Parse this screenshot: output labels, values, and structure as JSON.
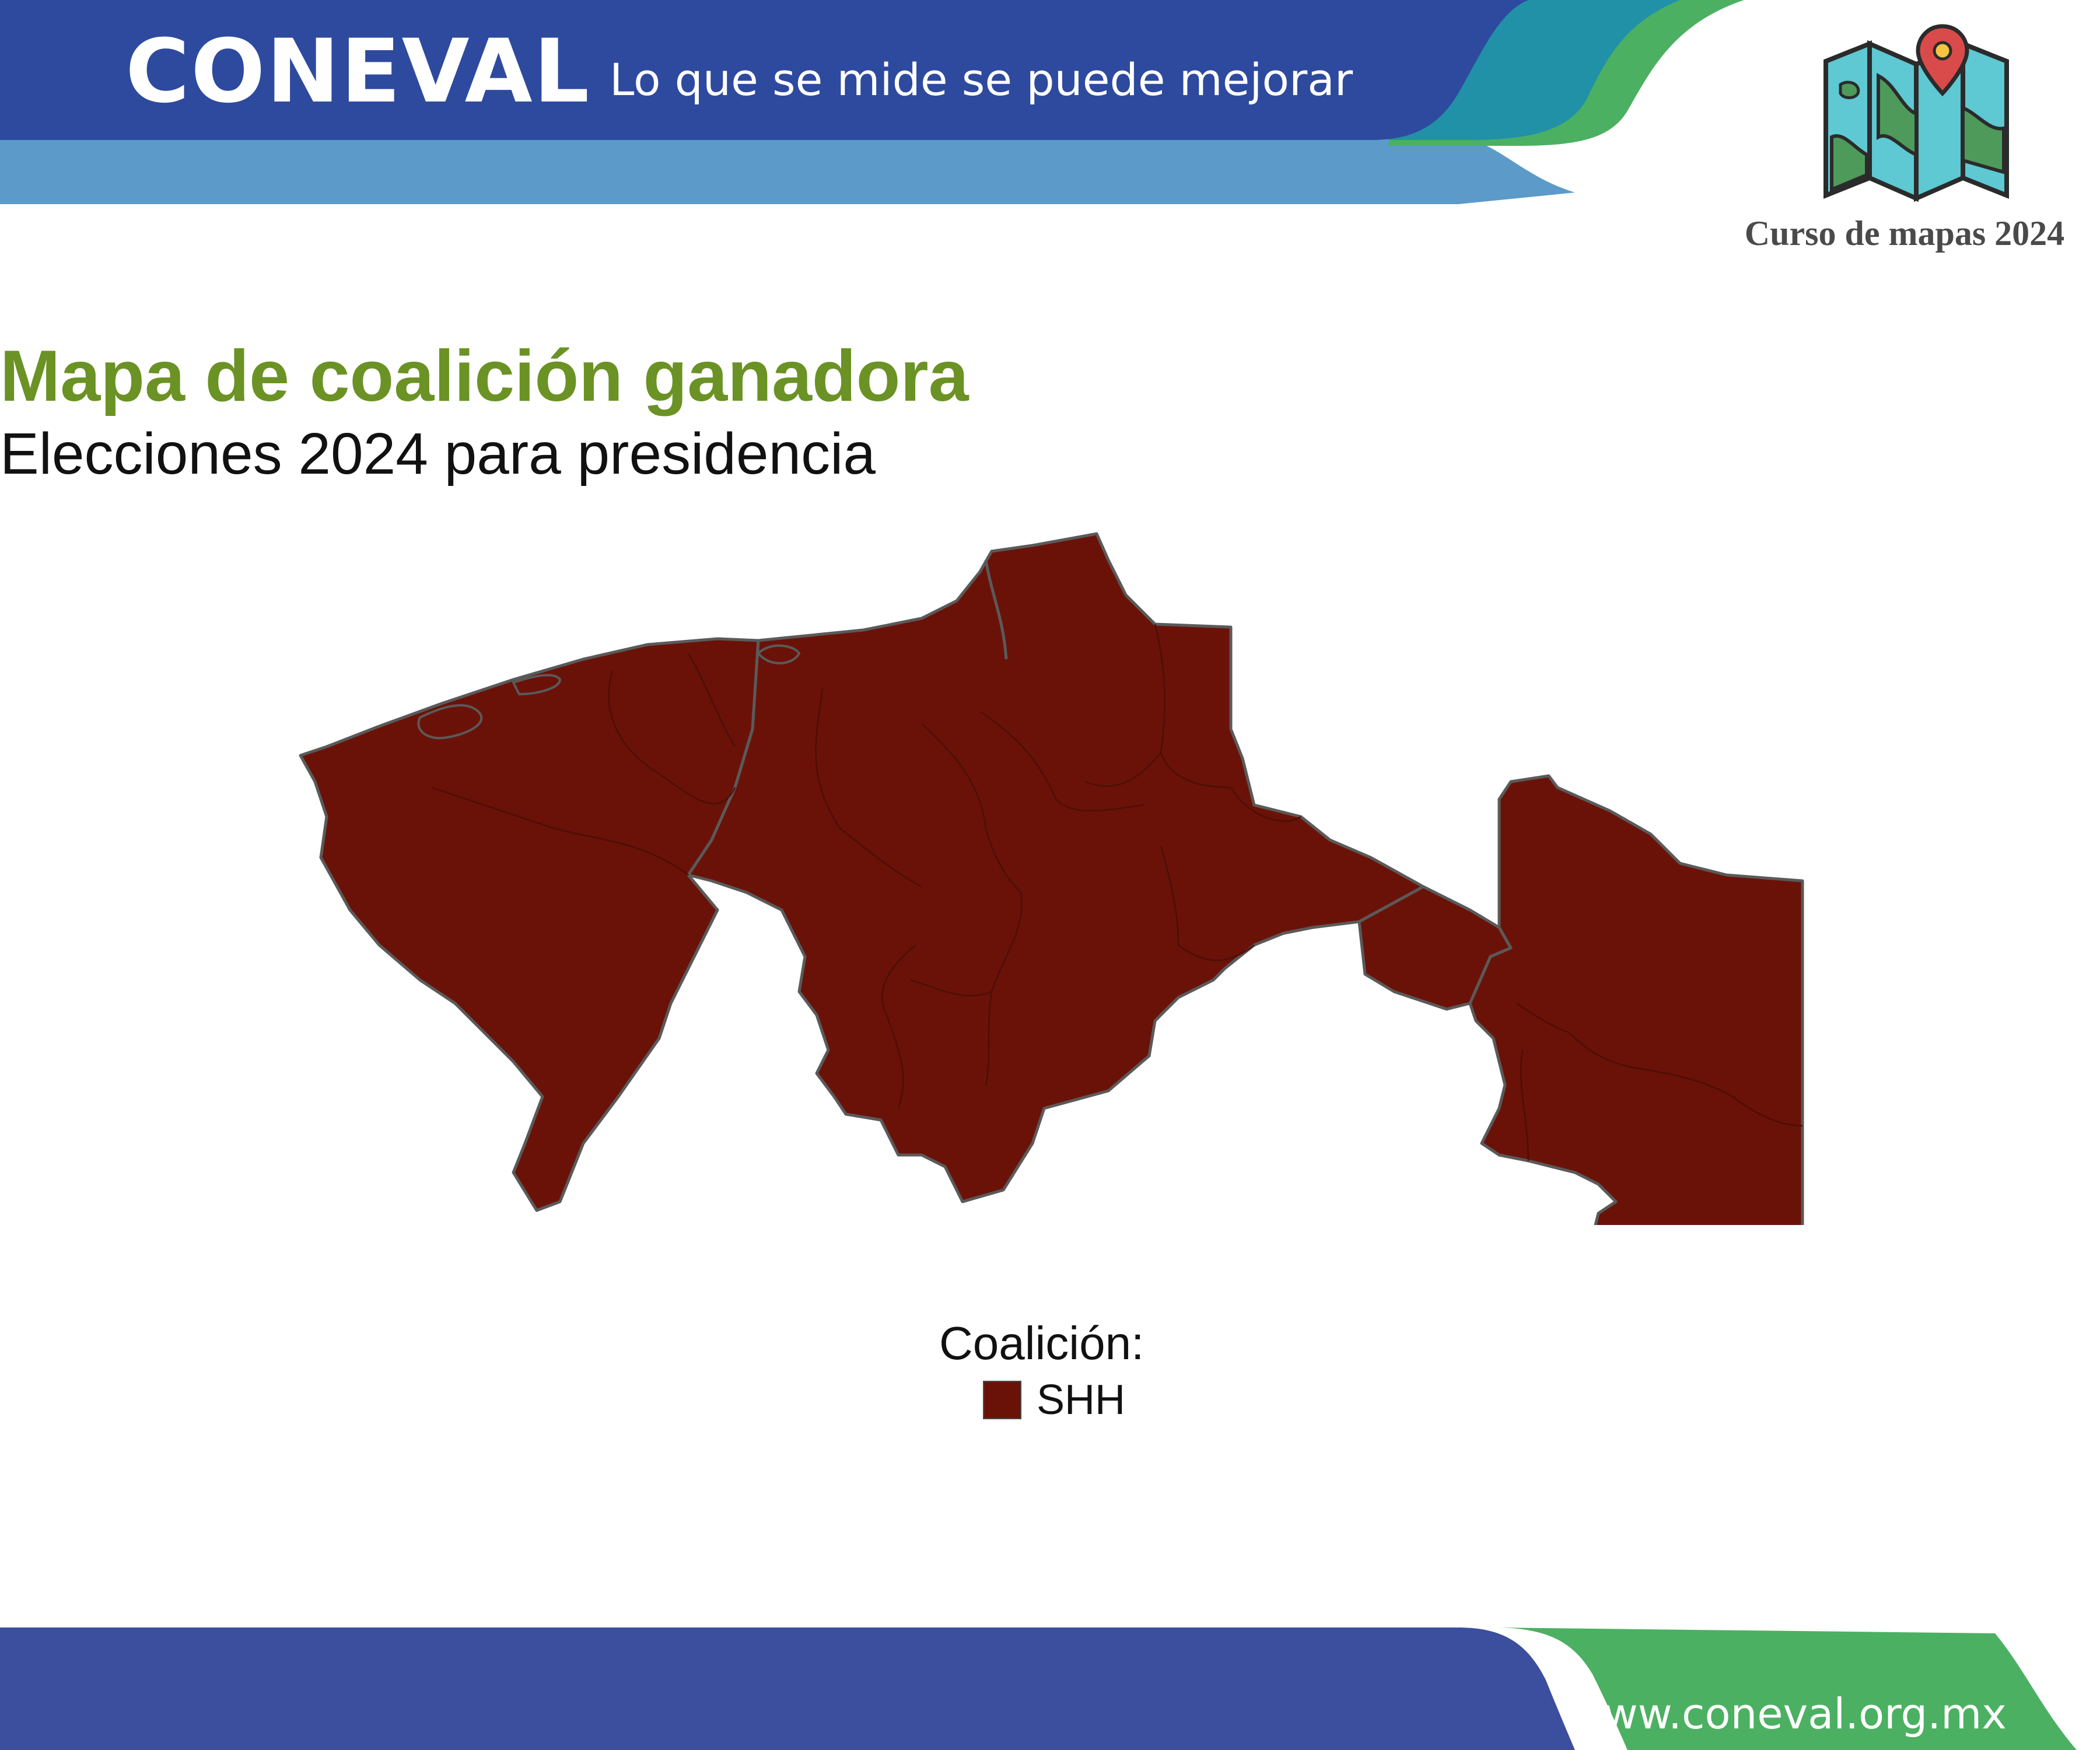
{
  "header": {
    "logo_text": "CONEVAL",
    "slogan": "Lo que se mide se puede mejorar",
    "colors": {
      "primary_blue": "#2e4a9e",
      "light_blue": "#5b9ac9",
      "teal": "#2191a8",
      "green": "#4cb062"
    }
  },
  "course": {
    "icon": "folded-map-with-pin-icon",
    "label": "Curso de mapas 2024"
  },
  "titles": {
    "main": "Mapa de coalición ganadora",
    "subtitle": "Elecciones 2024 para presidencia",
    "main_color": "#6b9224"
  },
  "map": {
    "region_fill": "#6b1208",
    "border_color": "#555555",
    "winner_all_municipalities": "SHH"
  },
  "legend": {
    "title": "Coalición:",
    "items": [
      {
        "label": "SHH",
        "color": "#6b1208"
      }
    ]
  },
  "footer": {
    "url": "www.coneval.org.mx",
    "colors": {
      "blue": "#3c4e9e",
      "green": "#4cb062"
    }
  }
}
